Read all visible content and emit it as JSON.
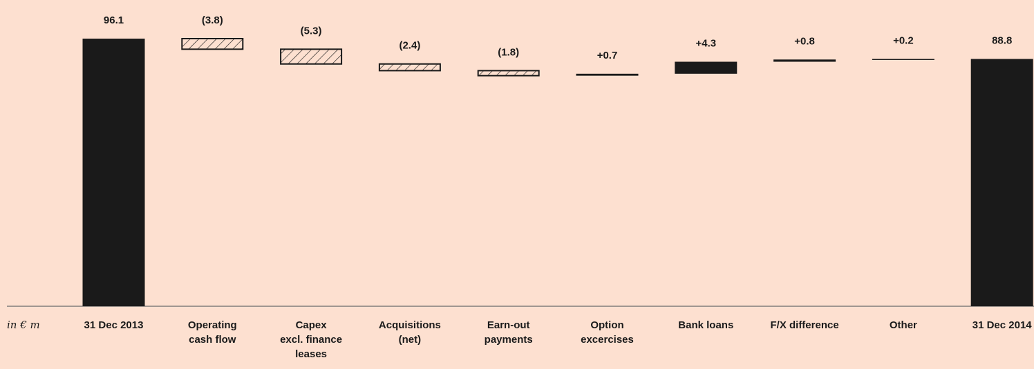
{
  "chart_data": {
    "type": "bar",
    "subtype": "waterfall",
    "unit_label": "in € m",
    "colors": {
      "background": "#fde0d0",
      "total": "#1a1a1a",
      "increase": "#1a1a1a",
      "decrease_hatch": "#1a1a1a"
    },
    "steps": [
      {
        "category": [
          "31 Dec 2013"
        ],
        "kind": "total",
        "value": 96.1,
        "label": "96.1"
      },
      {
        "category": [
          "Operating",
          "cash flow"
        ],
        "kind": "decrease",
        "value": -3.8,
        "label": "(3.8)"
      },
      {
        "category": [
          "Capex",
          "excl. finance",
          "leases"
        ],
        "kind": "decrease",
        "value": -5.3,
        "label": "(5.3)"
      },
      {
        "category": [
          "Acquisitions",
          "(net)"
        ],
        "kind": "decrease",
        "value": -2.4,
        "label": "(2.4)"
      },
      {
        "category": [
          "Earn-out",
          "payments"
        ],
        "kind": "decrease",
        "value": -1.8,
        "label": "(1.8)"
      },
      {
        "category": [
          "Option",
          "excercises"
        ],
        "kind": "increase",
        "value": 0.7,
        "label": "+0.7"
      },
      {
        "category": [
          "Bank loans"
        ],
        "kind": "increase",
        "value": 4.3,
        "label": "+4.3"
      },
      {
        "category": [
          "F/X difference"
        ],
        "kind": "increase",
        "value": 0.8,
        "label": "+0.8"
      },
      {
        "category": [
          "Other"
        ],
        "kind": "increase",
        "value": 0.2,
        "label": "+0.2"
      },
      {
        "category": [
          "31 Dec 2014"
        ],
        "kind": "total",
        "value": 88.8,
        "label": "88.8"
      }
    ],
    "ylim": [
      0,
      96.1
    ],
    "grid": false,
    "legend": "none"
  }
}
